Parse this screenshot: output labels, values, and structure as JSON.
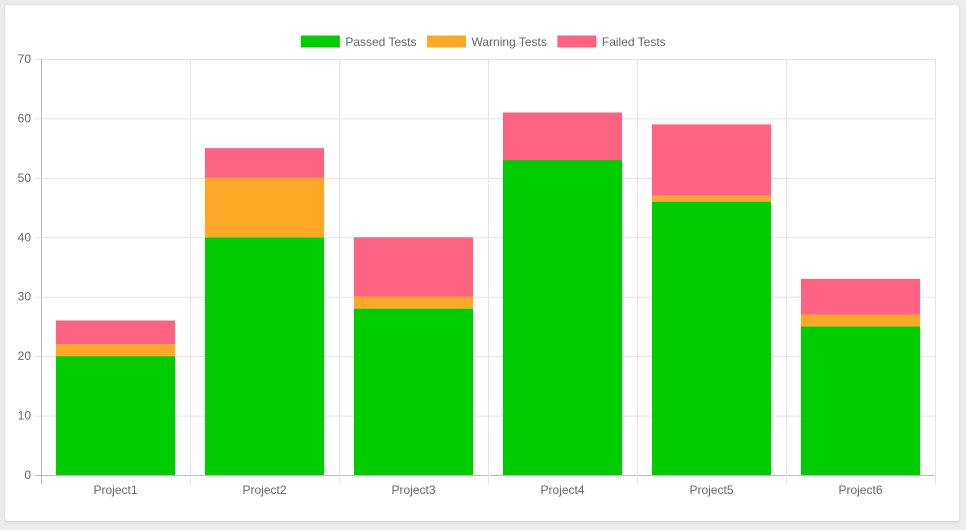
{
  "chart_data": {
    "type": "bar",
    "stacked": true,
    "categories": [
      "Project1",
      "Project2",
      "Project3",
      "Project4",
      "Project5",
      "Project6"
    ],
    "series": [
      {
        "name": "Passed Tests",
        "color": "#00cc00",
        "values": [
          20,
          40,
          28,
          53,
          46,
          25
        ]
      },
      {
        "name": "Warning Tests",
        "color": "#ffa726",
        "values": [
          2,
          10,
          2,
          0,
          1,
          2
        ]
      },
      {
        "name": "Failed Tests",
        "color": "#ff6384",
        "values": [
          4,
          5,
          10,
          8,
          12,
          6
        ]
      }
    ],
    "ylim": [
      0,
      70
    ],
    "yticks": [
      0,
      10,
      20,
      30,
      40,
      50,
      60,
      70
    ],
    "grid": true,
    "legend_position": "top",
    "title": "",
    "xlabel": "",
    "ylabel": ""
  }
}
